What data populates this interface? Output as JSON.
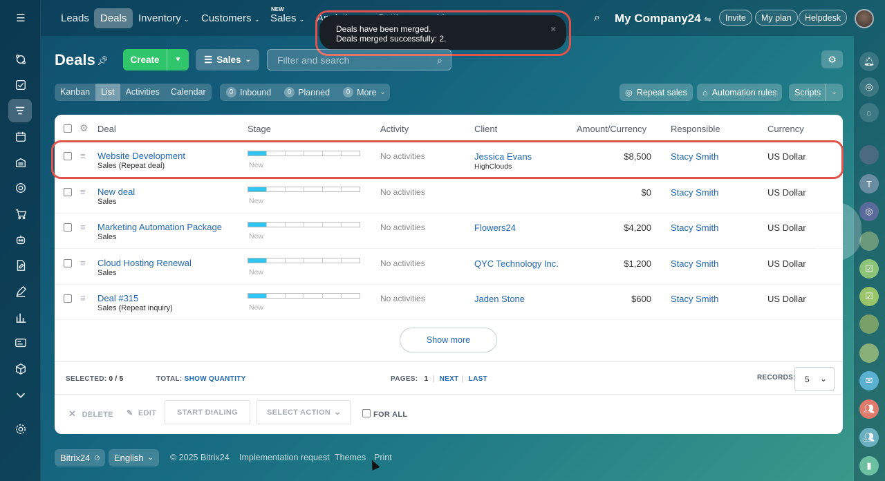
{
  "topnav": {
    "items": [
      "Leads",
      "Deals",
      "Inventory",
      "Customers",
      "Sales",
      "Analytics",
      "Settings",
      "More"
    ],
    "new_badge": "NEW",
    "company": "My Company24",
    "invite": "Invite",
    "my_plan": "My plan",
    "helpdesk": "Helpdesk"
  },
  "toast": {
    "line1": "Deals have been merged.",
    "line2": "Deals merged successfully: 2."
  },
  "page": {
    "title": "Deals",
    "create": "Create",
    "pipeline": "Sales",
    "search_placeholder": "Filter and search"
  },
  "views": [
    "Kanban",
    "List",
    "Activities",
    "Calendar"
  ],
  "counters": {
    "inbound_count": "0",
    "inbound": "Inbound",
    "planned_count": "0",
    "planned": "Planned",
    "more_count": "0",
    "more": "More"
  },
  "toolbar": {
    "repeat_sales": "Repeat sales",
    "automation_rules": "Automation rules",
    "scripts": "Scripts"
  },
  "table": {
    "headers": [
      "Deal",
      "Stage",
      "Activity",
      "Client",
      "Amount/Currency",
      "Responsible",
      "Currency"
    ],
    "rows": [
      {
        "title": "Website Development",
        "subtitle": "Sales (Repeat deal)",
        "stage": "New",
        "activity": "No activities",
        "client": "Jessica Evans",
        "client_sub": "HighClouds",
        "amount": "$8,500",
        "responsible": "Stacy Smith",
        "currency": "US Dollar"
      },
      {
        "title": "New deal",
        "subtitle": "Sales",
        "stage": "New",
        "activity": "No activities",
        "client": "",
        "client_sub": "",
        "amount": "$0",
        "responsible": "Stacy Smith",
        "currency": "US Dollar"
      },
      {
        "title": "Marketing Automation Package",
        "subtitle": "Sales",
        "stage": "New",
        "activity": "No activities",
        "client": "Flowers24",
        "client_sub": "",
        "amount": "$4,200",
        "responsible": "Stacy Smith",
        "currency": "US Dollar"
      },
      {
        "title": "Cloud Hosting Renewal",
        "subtitle": "Sales",
        "stage": "New",
        "activity": "No activities",
        "client": "QYC Technology Inc.",
        "client_sub": "",
        "amount": "$1,200",
        "responsible": "Stacy Smith",
        "currency": "US Dollar"
      },
      {
        "title": "Deal #315",
        "subtitle": "Sales (Repeat inquiry)",
        "stage": "New",
        "activity": "No activities",
        "client": "Jaden Stone",
        "client_sub": "",
        "amount": "$600",
        "responsible": "Stacy Smith",
        "currency": "US Dollar"
      }
    ],
    "show_more": "Show more"
  },
  "footer_bar": {
    "selected_label": "SELECTED:",
    "selected_value": "0 / 5",
    "total_label": "TOTAL:",
    "show_quantity": "SHOW QUANTITY",
    "pages_label": "PAGES:",
    "page_num": "1",
    "next": "NEXT",
    "last": "LAST",
    "records_label": "RECORDS:",
    "records_value": "5"
  },
  "actions": {
    "delete": "DELETE",
    "edit": "EDIT",
    "start_dialing": "START DIALING",
    "select_action": "SELECT ACTION",
    "for_all": "FOR ALL"
  },
  "bottom": {
    "brand": "Bitrix24",
    "language": "English",
    "copyright": "© 2025 Bitrix24",
    "implementation": "Implementation request",
    "themes": "Themes",
    "print": "Print"
  }
}
